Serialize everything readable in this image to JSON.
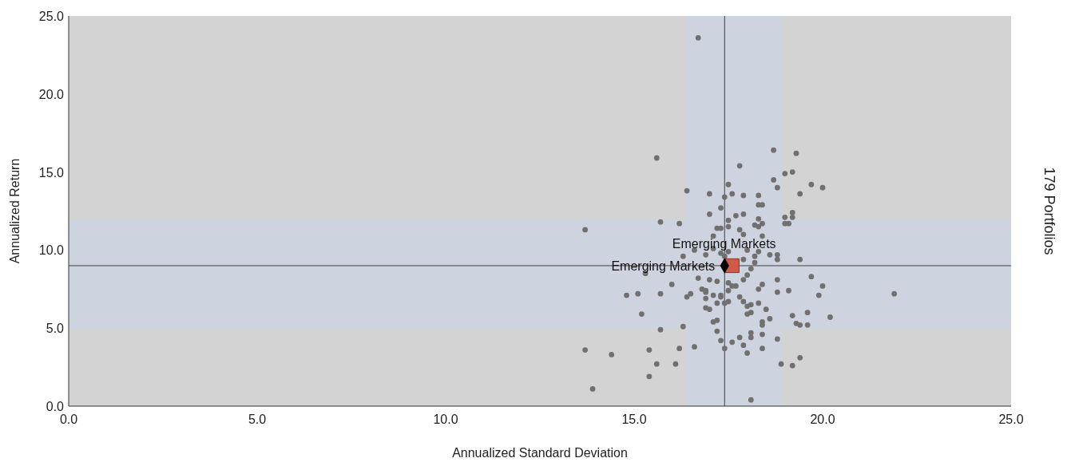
{
  "chart_data": {
    "type": "scatter",
    "xlabel": "Annualized Standard Deviation",
    "ylabel": "Annualized Return",
    "annotations": [
      "179 Portfolios"
    ],
    "xlim": [
      0,
      25
    ],
    "ylim": [
      0,
      25
    ],
    "xticks": [
      {
        "value": 0,
        "label": "0.0"
      },
      {
        "value": 5,
        "label": "5.0"
      },
      {
        "value": 10,
        "label": "10.0"
      },
      {
        "value": 15,
        "label": "15.0"
      },
      {
        "value": 20,
        "label": "20.0"
      },
      {
        "value": 25,
        "label": "25.0"
      }
    ],
    "yticks": [
      {
        "value": 0,
        "label": "0.0"
      },
      {
        "value": 5,
        "label": "5.0"
      },
      {
        "value": 10,
        "label": "10.0"
      },
      {
        "value": 15,
        "label": "15.0"
      },
      {
        "value": 20,
        "label": "20.0"
      },
      {
        "value": 25,
        "label": "25.0"
      }
    ],
    "bands": [
      {
        "axis": "x",
        "from": 16.4,
        "to": 18.9,
        "color": "#cdd4e0"
      },
      {
        "axis": "y",
        "from": 5.0,
        "to": 11.9,
        "color": "#cdd4e0"
      }
    ],
    "ref_lines": [
      {
        "axis": "x",
        "value": 17.4,
        "color": "#404040"
      },
      {
        "axis": "y",
        "value": 9.0,
        "color": "#404040"
      }
    ],
    "series": [
      {
        "color": "#707070",
        "marker": "circle",
        "x": [
          15.6,
          16.4,
          17.0,
          17.5,
          17.4,
          17.6,
          17.3,
          17.0,
          17.5,
          15.7,
          16.2,
          13.7,
          17.2,
          17.3,
          17.5,
          17.1,
          16.6,
          16.9,
          17.3,
          17.4,
          16.3,
          17.1,
          18.7,
          19.3,
          17.8,
          19.0,
          19.2,
          18.7,
          19.7,
          20.0,
          18.8,
          19.4,
          17.9,
          18.3,
          18.3,
          18.4,
          19.2,
          19.0,
          19.2,
          17.7,
          17.9,
          18.3,
          18.4,
          19.0,
          19.1,
          18.2,
          18.3,
          17.8,
          17.9,
          18.4,
          18.3,
          18.2,
          18.6,
          18.8,
          18.8,
          19.4,
          17.9,
          18.2,
          18.1,
          18.0,
          17.5,
          16.7,
          17.0,
          17.2,
          16.0,
          17.5,
          17.6,
          17.5,
          16.8,
          16.9,
          16.9,
          16.5,
          16.4,
          15.7,
          15.1,
          14.8,
          17.1,
          16.9,
          17.3,
          17.3,
          17.2,
          17.4,
          17.5,
          16.9,
          17.0,
          15.2,
          17.1,
          17.2,
          16.3,
          15.7,
          17.2,
          17.3,
          17.4,
          16.6,
          16.2,
          15.4,
          13.7,
          14.4,
          15.6,
          16.1,
          15.4,
          13.9,
          15.3,
          17.6,
          18.0,
          17.9,
          18.8,
          19.7,
          20.0,
          18.4,
          18.3,
          17.7,
          18.8,
          19.1,
          19.9,
          21.9,
          17.8,
          17.9,
          18.3,
          18.0,
          18.1,
          18.5,
          18.0,
          18.1,
          19.6,
          19.2,
          18.6,
          20.2,
          18.4,
          18.4,
          19.3,
          19.4,
          19.6,
          18.1,
          18.4,
          17.8,
          18.1,
          18.8,
          17.9,
          18.4,
          18.0,
          19.4,
          18.9,
          19.2,
          18.1,
          16.7
        ],
        "values": [
          15.9,
          13.8,
          13.6,
          14.2,
          13.4,
          13.6,
          12.7,
          12.3,
          11.9,
          11.8,
          11.7,
          11.3,
          11.4,
          11.4,
          11.5,
          10.9,
          10.0,
          9.7,
          9.8,
          9.6,
          9.6,
          10.1,
          16.4,
          16.2,
          15.4,
          14.9,
          15.0,
          14.5,
          14.2,
          14.0,
          14.0,
          13.6,
          13.5,
          13.5,
          12.9,
          12.9,
          12.4,
          12.1,
          12.1,
          12.2,
          12.3,
          12.0,
          11.7,
          11.7,
          11.7,
          11.6,
          11.5,
          11.3,
          11.0,
          10.9,
          9.9,
          9.6,
          9.7,
          9.7,
          9.4,
          9.4,
          9.4,
          9.2,
          8.8,
          10.0,
          9.9,
          8.2,
          8.1,
          8.0,
          7.8,
          7.9,
          7.7,
          7.4,
          7.5,
          7.4,
          7.3,
          7.2,
          7.0,
          7.2,
          7.2,
          7.1,
          7.1,
          6.9,
          7.0,
          7.1,
          6.6,
          6.6,
          6.7,
          6.3,
          6.2,
          5.9,
          5.4,
          5.5,
          5.1,
          4.9,
          4.8,
          4.2,
          3.7,
          3.8,
          3.7,
          3.6,
          3.6,
          3.3,
          2.7,
          2.7,
          1.9,
          1.1,
          8.5,
          4.1,
          8.4,
          8.1,
          8.1,
          8.3,
          7.7,
          7.8,
          7.5,
          7.7,
          7.3,
          7.4,
          7.1,
          7.2,
          7.0,
          6.7,
          6.6,
          6.4,
          6.5,
          6.2,
          5.9,
          6.0,
          6.0,
          5.8,
          5.6,
          5.7,
          5.4,
          5.2,
          5.3,
          5.2,
          5.2,
          4.7,
          4.6,
          4.4,
          4.4,
          4.3,
          3.9,
          3.7,
          3.4,
          3.1,
          2.7,
          2.6,
          0.4,
          23.6
        ]
      },
      {
        "name": "Emerging Markets",
        "color": "#d05a48",
        "marker": "square",
        "x": [
          17.6
        ],
        "values": [
          9.0
        ]
      },
      {
        "name": "Emerging Markets",
        "color": "#000000",
        "marker": "diamond",
        "x": [
          17.4
        ],
        "values": [
          9.0
        ]
      }
    ]
  }
}
